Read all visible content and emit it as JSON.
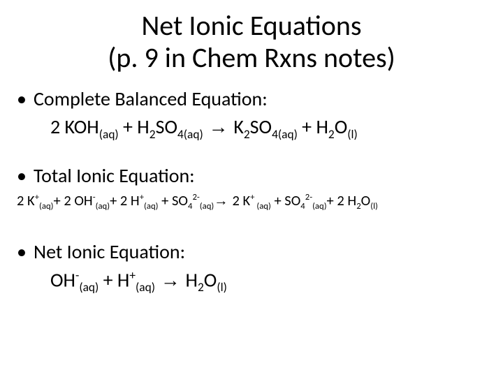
{
  "title_line1": "Net Ionic Equations",
  "title_line2": "(p. 9 in Chem Rxns notes)",
  "sections": {
    "complete": {
      "label": "Complete Balanced Equation:",
      "parts": {
        "c1": "2 KOH",
        "s1": "(aq)",
        "c2": " + H",
        "s2": "2",
        "c3": "SO",
        "s3": "4(aq)",
        "arrow": " → ",
        "c4": "K",
        "s4": "2",
        "c5": "SO",
        "s5": "4(aq)",
        "c6": " + H",
        "s6": "2",
        "c7": "O",
        "s7": "(l)"
      }
    },
    "total": {
      "label": "Total Ionic Equation:",
      "parts": {
        "t1": "2 K",
        "p1": "+",
        "s1": "(aq)",
        "t2": "+ 2 OH",
        "p2": "-",
        "s2": "(aq)",
        "t3": "+ 2 H",
        "p3": "+",
        "s3": "(aq)",
        "t4": " + SO",
        "s4a": "4",
        "p4": "2-",
        "s4b": "(aq)",
        "arrow": "→ ",
        "t5": "2 K",
        "p5": "+",
        "s5": " (aq)",
        "t6": " + SO",
        "s6a": "4",
        "p6": "2-",
        "s6b": "(aq)",
        "t7": "+ 2 H",
        "s7a": "2",
        "t8": "O",
        "s8": "(l)"
      }
    },
    "net": {
      "label": "Net Ionic Equation:",
      "parts": {
        "n1": "OH",
        "p1": "-",
        "s1": "(aq)",
        "n2": " + H",
        "p2": "+",
        "s2": "(aq)",
        "arrow": " → ",
        "n3": "H",
        "s3": "2",
        "n4": "O",
        "s4": "(l)"
      }
    }
  }
}
